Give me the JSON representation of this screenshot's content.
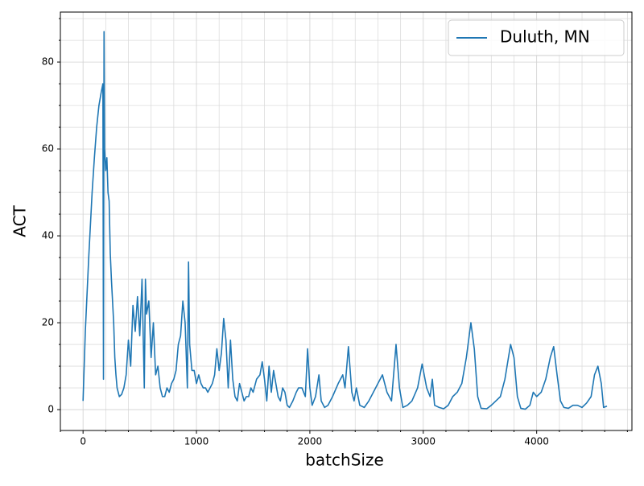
{
  "chart_data": {
    "type": "line",
    "xlabel": "batchSize",
    "ylabel": "ACT",
    "x": [
      0,
      20,
      50,
      80,
      100,
      120,
      140,
      160,
      175,
      180,
      185,
      190,
      200,
      210,
      220,
      230,
      240,
      250,
      260,
      270,
      280,
      290,
      300,
      320,
      340,
      360,
      380,
      400,
      420,
      440,
      460,
      480,
      500,
      520,
      540,
      550,
      560,
      580,
      600,
      620,
      640,
      660,
      680,
      700,
      720,
      740,
      760,
      780,
      800,
      820,
      840,
      860,
      880,
      900,
      920,
      930,
      940,
      960,
      980,
      1000,
      1020,
      1040,
      1060,
      1080,
      1100,
      1120,
      1140,
      1160,
      1180,
      1200,
      1220,
      1240,
      1260,
      1280,
      1300,
      1320,
      1340,
      1360,
      1380,
      1400,
      1420,
      1440,
      1460,
      1480,
      1500,
      1530,
      1560,
      1580,
      1600,
      1620,
      1640,
      1660,
      1680,
      1700,
      1720,
      1740,
      1760,
      1780,
      1800,
      1820,
      1850,
      1880,
      1900,
      1930,
      1960,
      1980,
      2000,
      2020,
      2050,
      2080,
      2100,
      2130,
      2160,
      2200,
      2250,
      2290,
      2310,
      2340,
      2370,
      2390,
      2410,
      2440,
      2480,
      2520,
      2560,
      2600,
      2640,
      2680,
      2720,
      2760,
      2790,
      2820,
      2860,
      2900,
      2950,
      2990,
      3030,
      3060,
      3080,
      3100,
      3140,
      3180,
      3220,
      3260,
      3300,
      3340,
      3380,
      3420,
      3450,
      3480,
      3510,
      3560,
      3600,
      3640,
      3680,
      3720,
      3770,
      3800,
      3830,
      3860,
      3900,
      3940,
      3970,
      4000,
      4040,
      4080,
      4120,
      4150,
      4180,
      4210,
      4240,
      4280,
      4320,
      4360,
      4400,
      4440,
      4480,
      4510,
      4540,
      4570,
      4590,
      4620
    ],
    "series": [
      {
        "name": "Duluth, MN",
        "color": "#1f77b4",
        "values": [
          2,
          18,
          35,
          50,
          58,
          65,
          70,
          73,
          75,
          7,
          87,
          60,
          55,
          58,
          50,
          48,
          36,
          30,
          25,
          20,
          12,
          8,
          5,
          3,
          3.5,
          5,
          8,
          16,
          10,
          24,
          18,
          26,
          17,
          30,
          5,
          30,
          22,
          25,
          12,
          20,
          8,
          10,
          5,
          3,
          3,
          5,
          4,
          6,
          7,
          9,
          15,
          17,
          25,
          20,
          5,
          34,
          15,
          9,
          9,
          6,
          8,
          6,
          5,
          5,
          4,
          5,
          6,
          8,
          14,
          9,
          13,
          21,
          16,
          5,
          16,
          7,
          3,
          2,
          6,
          4,
          2,
          3,
          3,
          5,
          4,
          7,
          8,
          11,
          7,
          2,
          10,
          4,
          9,
          6,
          3,
          2,
          5,
          4,
          1,
          0.5,
          2,
          4,
          5,
          5,
          3,
          14,
          5,
          1,
          3,
          8,
          2,
          0.5,
          1,
          3,
          6,
          8,
          5,
          14.5,
          4,
          2,
          5,
          1,
          0.5,
          2,
          4,
          6,
          8,
          4,
          2,
          15,
          5,
          0.5,
          1,
          2,
          5,
          10.5,
          5,
          3,
          7,
          1,
          0.5,
          0.2,
          1,
          3,
          4,
          6,
          12,
          20,
          14,
          3,
          0.3,
          0.2,
          1,
          2,
          3,
          7,
          15,
          12,
          3,
          0.3,
          0.1,
          1,
          4,
          3,
          4,
          7,
          12,
          14.5,
          8,
          2,
          0.5,
          0.3,
          1,
          1,
          0.5,
          1.5,
          3,
          8,
          10,
          6,
          0.5,
          0.8
        ]
      }
    ],
    "xlim": [
      -200,
      4840
    ],
    "ylim": [
      -4.8,
      91.5
    ],
    "xticks": [
      0,
      1000,
      2000,
      3000,
      4000
    ],
    "yticks": [
      0,
      20,
      40,
      60,
      80
    ],
    "xminor": [
      -200,
      200,
      400,
      600,
      800,
      1200,
      1400,
      1600,
      1800,
      2200,
      2400,
      2600,
      2800,
      3200,
      3400,
      3600,
      3800,
      4200,
      4400,
      4600,
      4800
    ],
    "yminor": [
      -5,
      5,
      10,
      15,
      25,
      30,
      35,
      45,
      50,
      55,
      65,
      70,
      75,
      85,
      90
    ],
    "grid": true,
    "legend": "upper right"
  }
}
